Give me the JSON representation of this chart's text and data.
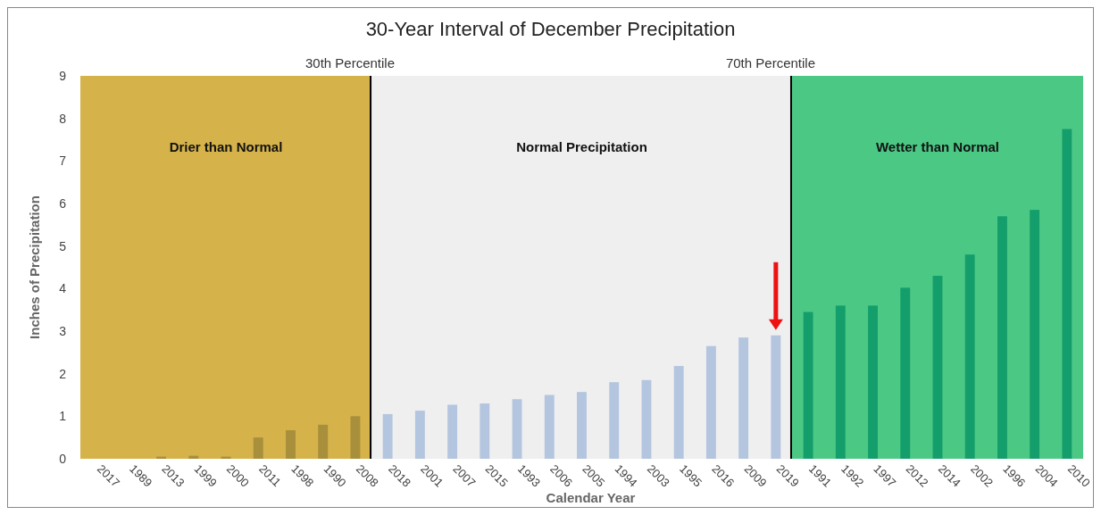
{
  "chart_data": {
    "type": "bar",
    "title": "30-Year Interval of December Precipitation",
    "xlabel": "Calendar Year",
    "ylabel": "Inches of Precipitation",
    "categories": [
      "2017",
      "1989",
      "2013",
      "1999",
      "2000",
      "2011",
      "1998",
      "1990",
      "2008",
      "2018",
      "2001",
      "2007",
      "2015",
      "1993",
      "2006",
      "2005",
      "1994",
      "2003",
      "1995",
      "2016",
      "2009",
      "2019",
      "1991",
      "1992",
      "1997",
      "2012",
      "2014",
      "2002",
      "1996",
      "2004",
      "2010"
    ],
    "values": [
      0,
      0,
      0.05,
      0.07,
      0.05,
      0.5,
      0.67,
      0.8,
      1.0,
      1.05,
      1.13,
      1.27,
      1.3,
      1.4,
      1.5,
      1.57,
      1.8,
      1.85,
      2.18,
      2.65,
      2.85,
      2.9,
      3.45,
      3.6,
      3.6,
      4.02,
      4.3,
      4.8,
      5.7,
      5.85,
      7.75
    ],
    "colors": [
      "#a88f3c",
      "#a88f3c",
      "#a88f3c",
      "#a88f3c",
      "#a88f3c",
      "#a88f3c",
      "#a88f3c",
      "#a88f3c",
      "#a88f3c",
      "#b4c5df",
      "#b4c5df",
      "#b4c5df",
      "#b4c5df",
      "#b4c5df",
      "#b4c5df",
      "#b4c5df",
      "#b4c5df",
      "#b4c5df",
      "#b4c5df",
      "#b4c5df",
      "#b4c5df",
      "#b4c5df",
      "#139e6b",
      "#139e6b",
      "#139e6b",
      "#139e6b",
      "#139e6b",
      "#139e6b",
      "#139e6b",
      "#139e6b",
      "#139e6b"
    ],
    "ylim": [
      0,
      9
    ],
    "yticks": [
      0,
      1,
      2,
      3,
      4,
      5,
      6,
      7,
      8,
      9
    ],
    "bands": [
      {
        "axis": "x",
        "from": "2017",
        "to": "2008",
        "label": "Drier than Normal",
        "color": "#d5b24a"
      },
      {
        "axis": "x",
        "from": "2018",
        "to": "2019",
        "label": "Normal Precipitation",
        "color": "#efefef"
      },
      {
        "axis": "x",
        "from": "1991",
        "to": "2010",
        "label": "Wetter than Normal",
        "color": "#4cc885"
      }
    ],
    "annotations": [
      "30th Percentile",
      "70th Percentile"
    ]
  }
}
